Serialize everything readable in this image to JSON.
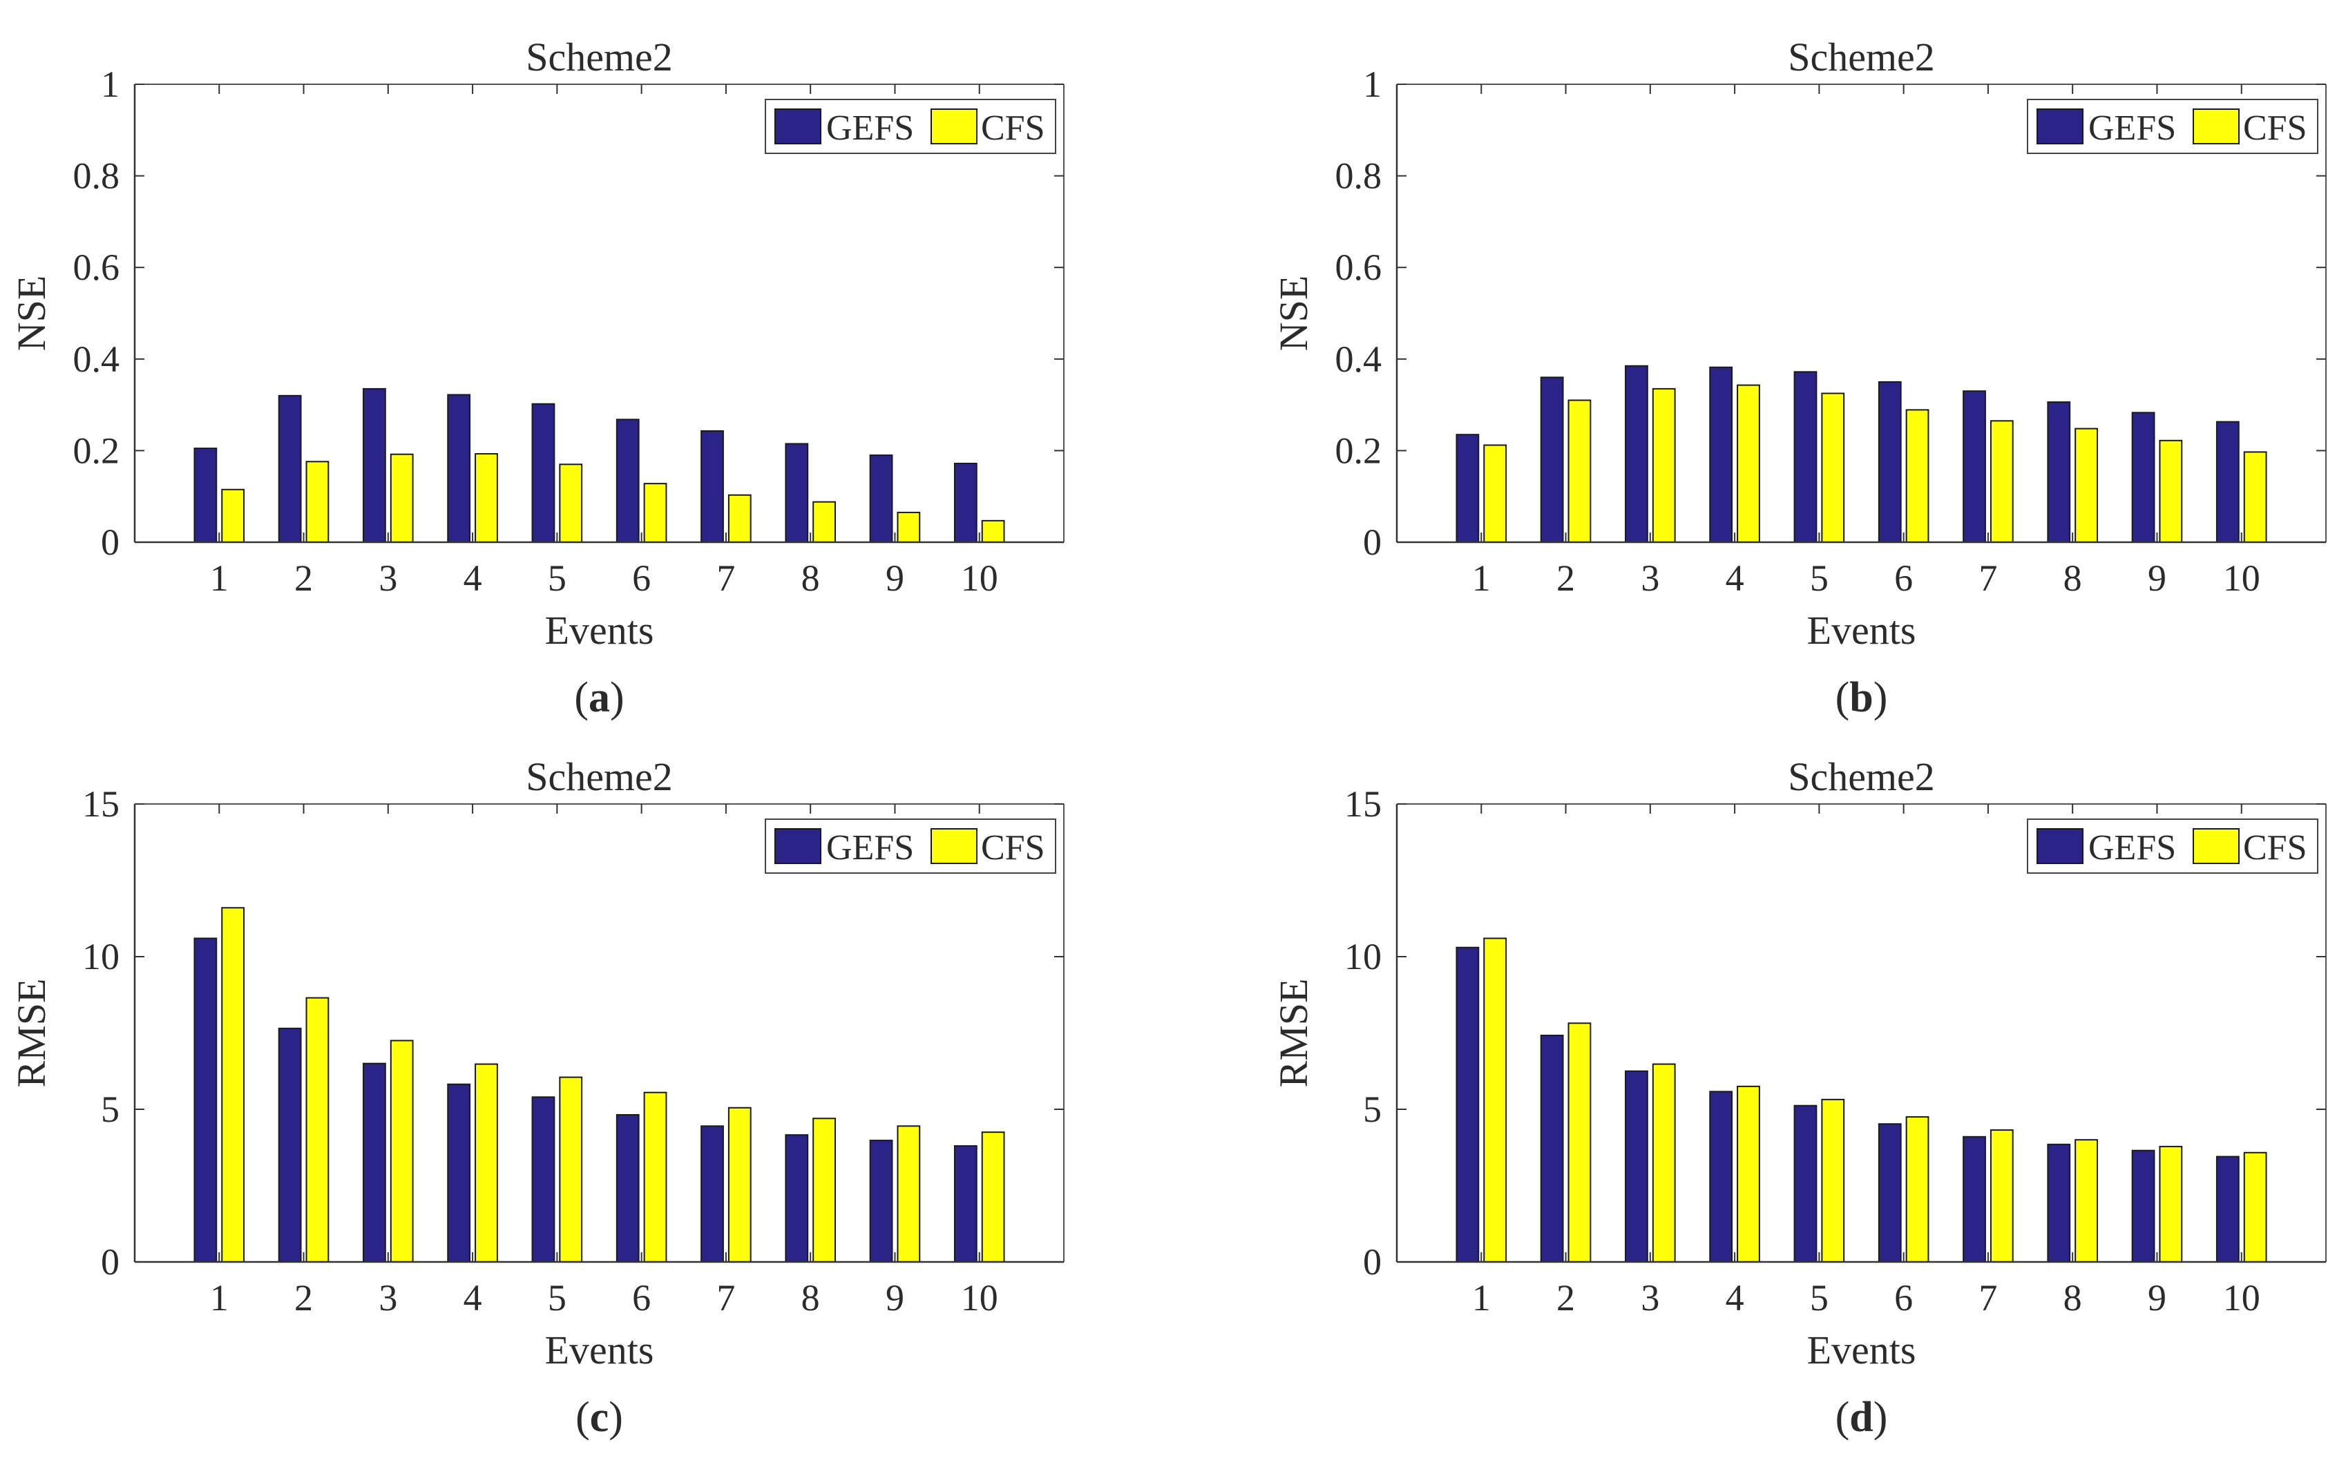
{
  "colors": {
    "gefs": "#2b2488",
    "cfs": "#ffff0a",
    "axis": "#333333",
    "frame": "#555555"
  },
  "chart_data": [
    {
      "type": "bar",
      "panel_label": "a",
      "title": "Scheme2",
      "xlabel": "Events",
      "ylabel": "NSE",
      "ylim": [
        0,
        1
      ],
      "yticks": [
        "0",
        "0.2",
        "0.4",
        "0.6",
        "0.8",
        "1"
      ],
      "ytick_values": [
        0,
        0.2,
        0.4,
        0.6,
        0.8,
        1
      ],
      "categories": [
        "1",
        "2",
        "3",
        "4",
        "5",
        "6",
        "7",
        "8",
        "9",
        "10"
      ],
      "legend": [
        "GEFS",
        "CFS"
      ],
      "legend_position": "top-right",
      "series": [
        {
          "name": "GEFS",
          "values": [
            0.205,
            0.32,
            0.335,
            0.322,
            0.302,
            0.268,
            0.243,
            0.215,
            0.19,
            0.172
          ]
        },
        {
          "name": "CFS",
          "values": [
            0.115,
            0.176,
            0.192,
            0.193,
            0.17,
            0.128,
            0.103,
            0.088,
            0.065,
            0.047
          ]
        }
      ]
    },
    {
      "type": "bar",
      "panel_label": "b",
      "title": "Scheme2",
      "xlabel": "Events",
      "ylabel": "NSE",
      "ylim": [
        0,
        1
      ],
      "yticks": [
        "0",
        "0.2",
        "0.4",
        "0.6",
        "0.8",
        "1"
      ],
      "ytick_values": [
        0,
        0.2,
        0.4,
        0.6,
        0.8,
        1
      ],
      "categories": [
        "1",
        "2",
        "3",
        "4",
        "5",
        "6",
        "7",
        "8",
        "9",
        "10"
      ],
      "legend": [
        "GEFS",
        "CFS"
      ],
      "legend_position": "top-right",
      "series": [
        {
          "name": "GEFS",
          "values": [
            0.235,
            0.36,
            0.385,
            0.382,
            0.372,
            0.35,
            0.33,
            0.306,
            0.283,
            0.263
          ]
        },
        {
          "name": "CFS",
          "values": [
            0.212,
            0.31,
            0.335,
            0.343,
            0.325,
            0.289,
            0.265,
            0.248,
            0.222,
            0.197
          ]
        }
      ]
    },
    {
      "type": "bar",
      "panel_label": "c",
      "title": "Scheme2",
      "xlabel": "Events",
      "ylabel": "RMSE",
      "ylim": [
        0,
        15
      ],
      "yticks": [
        "0",
        "5",
        "10",
        "15"
      ],
      "ytick_values": [
        0,
        5,
        10,
        15
      ],
      "categories": [
        "1",
        "2",
        "3",
        "4",
        "5",
        "6",
        "7",
        "8",
        "9",
        "10"
      ],
      "legend": [
        "GEFS",
        "CFS"
      ],
      "legend_position": "top-right",
      "series": [
        {
          "name": "GEFS",
          "values": [
            10.6,
            7.65,
            6.5,
            5.82,
            5.4,
            4.82,
            4.45,
            4.16,
            3.98,
            3.8
          ]
        },
        {
          "name": "CFS",
          "values": [
            11.6,
            8.65,
            7.25,
            6.48,
            6.05,
            5.55,
            5.05,
            4.7,
            4.45,
            4.25
          ]
        }
      ]
    },
    {
      "type": "bar",
      "panel_label": "d",
      "title": "Scheme2",
      "xlabel": "Events",
      "ylabel": "RMSE",
      "ylim": [
        0,
        15
      ],
      "yticks": [
        "0",
        "5",
        "10",
        "15"
      ],
      "ytick_values": [
        0,
        5,
        10,
        15
      ],
      "categories": [
        "1",
        "2",
        "3",
        "4",
        "5",
        "6",
        "7",
        "8",
        "9",
        "10"
      ],
      "legend": [
        "GEFS",
        "CFS"
      ],
      "legend_position": "top-right",
      "series": [
        {
          "name": "GEFS",
          "values": [
            10.3,
            7.42,
            6.25,
            5.58,
            5.12,
            4.52,
            4.1,
            3.85,
            3.65,
            3.45
          ]
        },
        {
          "name": "CFS",
          "values": [
            10.6,
            7.82,
            6.48,
            5.75,
            5.32,
            4.75,
            4.32,
            4.0,
            3.78,
            3.58
          ]
        }
      ]
    }
  ]
}
